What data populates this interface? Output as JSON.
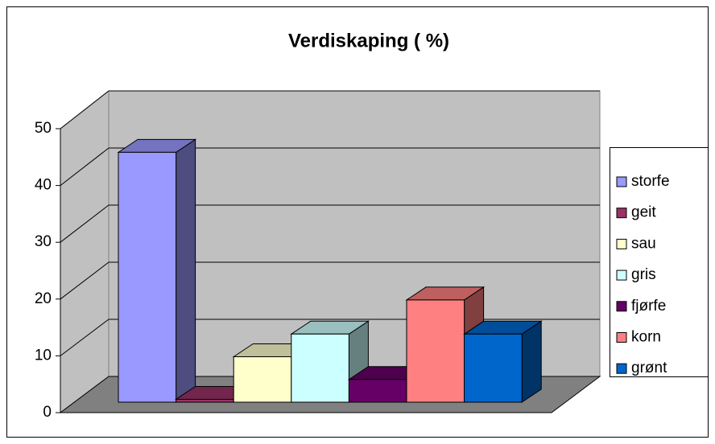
{
  "chart_data": {
    "type": "bar3d",
    "title": "Verdiskaping ( %)",
    "ylim": [
      0,
      50
    ],
    "yticks": [
      0,
      10,
      20,
      30,
      40,
      50
    ],
    "grid": true,
    "legend": "right",
    "series": [
      {
        "name": "storfe",
        "color": "#9999ff",
        "values": [
          44
        ]
      },
      {
        "name": "geit",
        "color": "#993366",
        "values": [
          0.5
        ]
      },
      {
        "name": "sau",
        "color": "#ffffcc",
        "values": [
          8
        ]
      },
      {
        "name": "gris",
        "color": "#ccffff",
        "values": [
          12
        ]
      },
      {
        "name": "fjørfe",
        "color": "#660066",
        "values": [
          4
        ]
      },
      {
        "name": "korn",
        "color": "#ff8080",
        "values": [
          18
        ]
      },
      {
        "name": "grønt",
        "color": "#0066cc",
        "values": [
          12
        ]
      }
    ]
  }
}
